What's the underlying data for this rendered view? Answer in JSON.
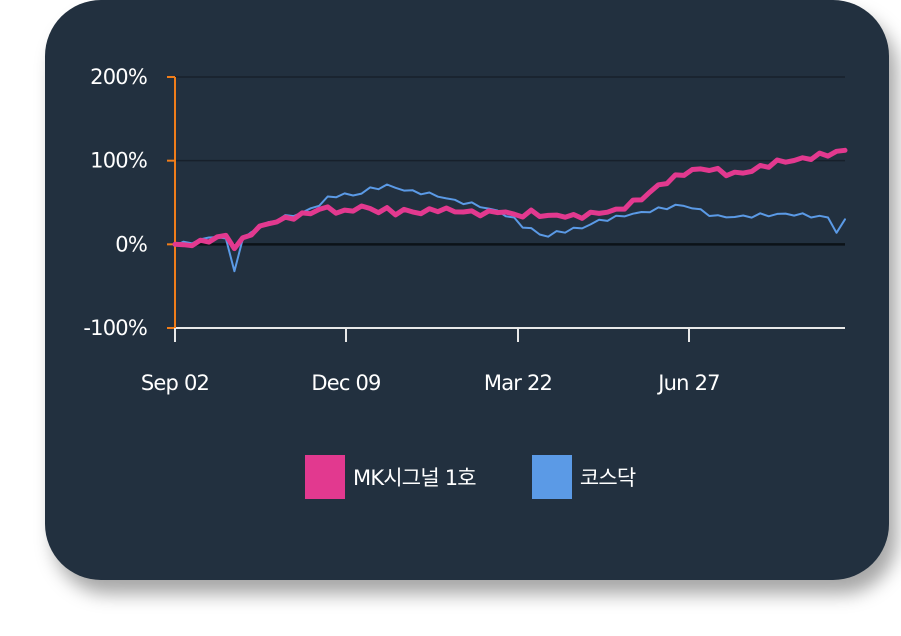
{
  "chart_data": {
    "type": "line",
    "x_ticks": [
      "Sep 02",
      "Dec 09",
      "Mar 22",
      "Jun 27"
    ],
    "y_ticks": [
      "200%",
      "100%",
      "0%",
      "-100%"
    ],
    "ylim": [
      -100,
      200
    ],
    "grid": true,
    "legend_position": "bottom",
    "background": "#22303f",
    "axis_color": "#f07d1a",
    "series": [
      {
        "name": "MK시그널 1호",
        "color": "#e2398f",
        "values": [
          0,
          -2,
          1,
          2,
          5,
          8,
          10,
          -3,
          5,
          14,
          20,
          25,
          28,
          30,
          33,
          35,
          38,
          42,
          43,
          40,
          38,
          42,
          45,
          42,
          40,
          41,
          38,
          40,
          39,
          38,
          40,
          42,
          41,
          40,
          39,
          38,
          37,
          37,
          40,
          38,
          35,
          35,
          38,
          36,
          33,
          35,
          34,
          33,
          34,
          36,
          38,
          39,
          40,
          45,
          50,
          55,
          62,
          70,
          75,
          80,
          85,
          88,
          90,
          90,
          88,
          85,
          84,
          86,
          88,
          92,
          95,
          98,
          100,
          100,
          102,
          104,
          106,
          108,
          110,
          112
        ]
      },
      {
        "name": "코스닥",
        "color": "#5b9ae6",
        "values": [
          0,
          1,
          3,
          5,
          8,
          10,
          5,
          -30,
          5,
          15,
          20,
          25,
          30,
          33,
          35,
          38,
          42,
          48,
          55,
          58,
          60,
          58,
          62,
          66,
          68,
          70,
          68,
          65,
          63,
          62,
          60,
          58,
          55,
          52,
          50,
          48,
          46,
          42,
          40,
          35,
          30,
          22,
          18,
          12,
          10,
          14,
          16,
          18,
          20,
          24,
          28,
          30,
          32,
          35,
          36,
          38,
          40,
          42,
          44,
          46,
          46,
          44,
          40,
          36,
          33,
          33,
          33,
          33,
          34,
          35,
          35,
          36,
          36,
          36,
          35,
          34,
          33,
          32,
          15,
          28
        ]
      }
    ]
  }
}
